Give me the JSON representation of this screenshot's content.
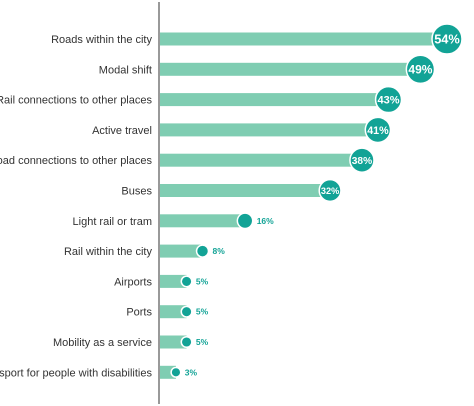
{
  "chart_data": {
    "type": "bar",
    "orientation": "horizontal",
    "title": "",
    "xlabel": "",
    "ylabel": "",
    "categories": [
      "Roads within the city",
      "Modal shift",
      "Rail connections to other places",
      "Active travel",
      "Road connections to other places",
      "Buses",
      "Light rail or tram",
      "Rail within the city",
      "Airports",
      "Ports",
      "Mobility as a service",
      "Transport for people with disabilities"
    ],
    "values": [
      54,
      49,
      43,
      41,
      38,
      32,
      16,
      8,
      5,
      5,
      5,
      3
    ],
    "labels": [
      "54%",
      "49%",
      "43%",
      "41%",
      "38%",
      "32%",
      "16%",
      "8%",
      "5%",
      "5%",
      "5%",
      "3%"
    ],
    "xlim": [
      0,
      54
    ],
    "grid": false,
    "legend": "none",
    "colors": {
      "bar": "#7fcdb2",
      "marker": "#12a396",
      "marker_stroke": "#ffffff",
      "label_text": "#12a396",
      "axis": "#333333",
      "category_text": "#333333"
    }
  }
}
